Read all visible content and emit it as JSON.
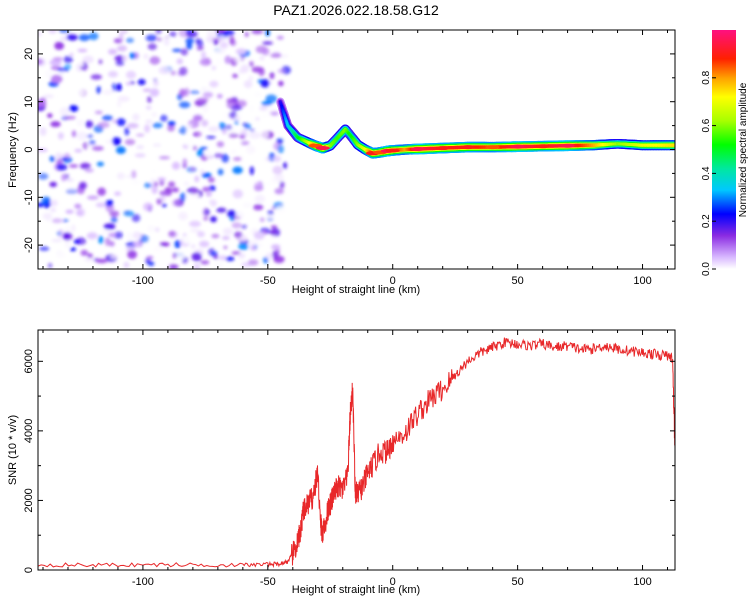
{
  "title": "PAZ1.2026.022.18.58.G12",
  "chart_data": [
    {
      "type": "heatmap",
      "title": "PAZ1.2026.022.18.58.G12",
      "xlabel": "Height of straight line (km)",
      "ylabel": "Frequency (Hz)",
      "xlim": [
        -142,
        113
      ],
      "ylim": [
        -25,
        25
      ],
      "xticks": [
        -100,
        -50,
        0,
        50,
        100
      ],
      "xtick_labels": [
        "-100",
        "-50",
        "0",
        "50",
        "100"
      ],
      "yticks": [
        -20,
        -10,
        0,
        10,
        20
      ],
      "ytick_labels": [
        "-20",
        "-10",
        "0",
        "10",
        "20"
      ],
      "noise_region": {
        "x_from": -142,
        "x_to": -45,
        "amplitude_range": [
          0.0,
          0.3
        ]
      },
      "ridge": {
        "x": [
          -45,
          -42,
          -38,
          -34,
          -31,
          -28,
          -25,
          -22,
          -19,
          -17,
          -14,
          -11,
          -8,
          -5,
          -2,
          0,
          5,
          10,
          20,
          30,
          40,
          50,
          60,
          70,
          80,
          90,
          100,
          113
        ],
        "frequency": [
          10,
          5,
          2.5,
          1.5,
          0.8,
          0.3,
          0.8,
          2.5,
          4.2,
          3.0,
          1.0,
          0.0,
          -0.8,
          -0.6,
          -0.3,
          -0.2,
          0.0,
          0.1,
          0.3,
          0.5,
          0.5,
          0.6,
          0.7,
          0.8,
          0.9,
          1.2,
          0.9,
          0.9
        ],
        "amplitude": [
          0.2,
          0.35,
          0.5,
          0.65,
          0.85,
          0.95,
          0.6,
          0.55,
          0.6,
          0.5,
          0.6,
          0.7,
          0.9,
          0.85,
          0.95,
          0.9,
          0.8,
          0.95,
          0.9,
          0.9,
          0.85,
          0.95,
          0.9,
          0.95,
          0.8,
          0.6,
          0.7,
          0.75
        ]
      },
      "colorbar": {
        "label": "Normalized spectral amplitude",
        "ticks": [
          0.0,
          0.2,
          0.4,
          0.6,
          0.8
        ],
        "tick_labels": [
          "0.0",
          "0.2",
          "0.4",
          "0.6",
          "0.8"
        ],
        "range": [
          0,
          1
        ]
      }
    },
    {
      "type": "line",
      "xlabel": "Height of straight line (km)",
      "ylabel": "SNR (10 * v/v)",
      "xlim": [
        -142,
        113
      ],
      "ylim": [
        0,
        6900
      ],
      "xticks": [
        -100,
        -50,
        0,
        50,
        100
      ],
      "xtick_labels": [
        "-100",
        "-50",
        "0",
        "50",
        "100"
      ],
      "yticks": [
        0,
        2000,
        4000,
        6000
      ],
      "ytick_labels": [
        "0",
        "2000",
        "4000",
        "6000"
      ],
      "series": [
        {
          "name": "SNR",
          "color": "#e8282a",
          "x": [
            -142,
            -120,
            -100,
            -80,
            -60,
            -50,
            -45,
            -42,
            -40,
            -38,
            -37,
            -36,
            -34,
            -32,
            -30,
            -29,
            -28,
            -26,
            -25,
            -24,
            -22,
            -20,
            -18,
            -17,
            -16,
            -15,
            -14,
            -12,
            -10,
            -8,
            -5,
            -2,
            0,
            5,
            10,
            15,
            20,
            25,
            30,
            35,
            40,
            45,
            50,
            55,
            60,
            65,
            70,
            75,
            80,
            85,
            90,
            95,
            100,
            105,
            110,
            112,
            113
          ],
          "y": [
            150,
            140,
            150,
            150,
            140,
            160,
            180,
            250,
            450,
            800,
            1100,
            1600,
            1900,
            2100,
            2800,
            1400,
            1000,
            1700,
            1900,
            2100,
            2400,
            2300,
            2700,
            4500,
            5200,
            2200,
            2200,
            2400,
            2800,
            3000,
            3400,
            3400,
            3700,
            3950,
            4500,
            4900,
            5200,
            5600,
            6000,
            6250,
            6400,
            6550,
            6500,
            6450,
            6500,
            6400,
            6450,
            6350,
            6350,
            6450,
            6350,
            6300,
            6250,
            6200,
            6150,
            6100,
            3500
          ]
        }
      ]
    }
  ]
}
